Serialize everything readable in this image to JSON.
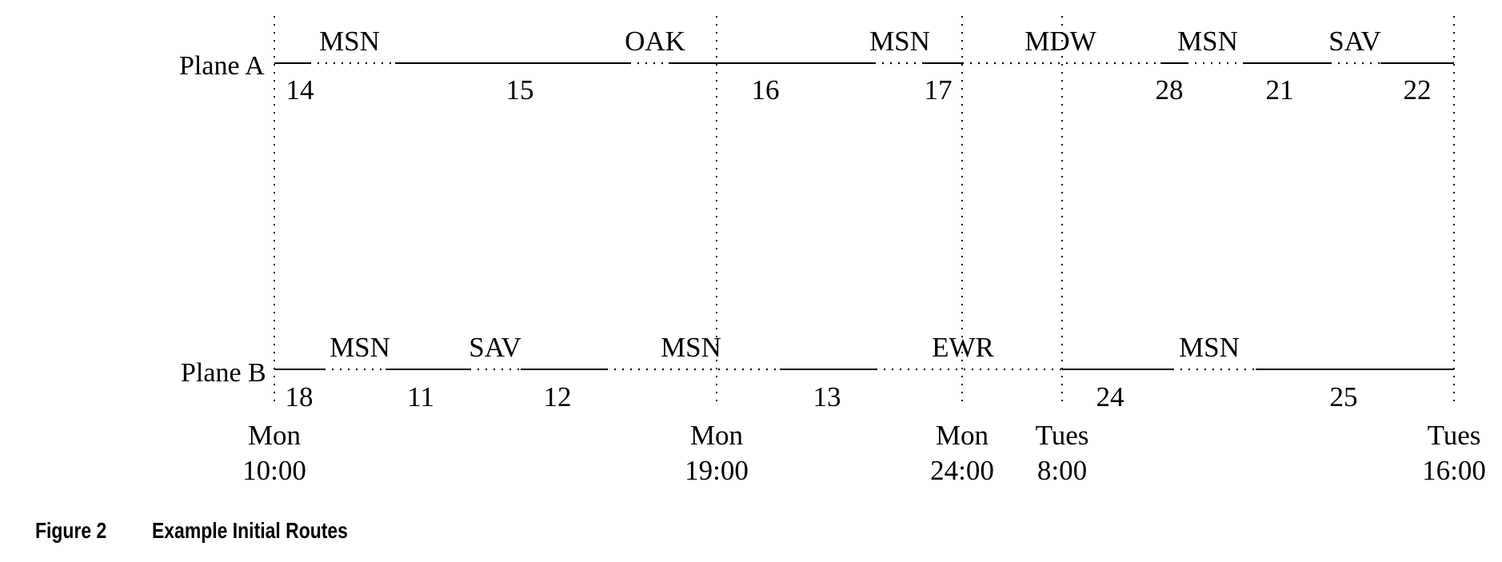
{
  "caption": {
    "label": "Figure 2",
    "title": "Example Initial Routes"
  },
  "time_marks": [
    {
      "day": "Mon",
      "time": "10:00"
    },
    {
      "day": "Mon",
      "time": "19:00"
    },
    {
      "day": "Mon",
      "time": "24:00"
    },
    {
      "day": "Tues",
      "time": "8:00"
    },
    {
      "day": "Tues",
      "time": "16:00"
    }
  ],
  "planes": [
    {
      "name": "Plane A",
      "airports": [
        "MSN",
        "OAK",
        "MSN",
        "MDW",
        "MSN",
        "SAV"
      ],
      "segments": [
        {
          "kind": "flight",
          "label": "14"
        },
        {
          "kind": "ground"
        },
        {
          "kind": "flight",
          "label": "15"
        },
        {
          "kind": "ground"
        },
        {
          "kind": "flight",
          "label": "16"
        },
        {
          "kind": "ground"
        },
        {
          "kind": "flight",
          "label": "17"
        },
        {
          "kind": "ground"
        },
        {
          "kind": "flight",
          "label": "28"
        },
        {
          "kind": "ground"
        },
        {
          "kind": "flight",
          "label": "21"
        },
        {
          "kind": "ground"
        },
        {
          "kind": "flight",
          "label": "22"
        }
      ]
    },
    {
      "name": "Plane B",
      "airports": [
        "MSN",
        "SAV",
        "MSN",
        "EWR",
        "MSN"
      ],
      "segments": [
        {
          "kind": "flight",
          "label": "18"
        },
        {
          "kind": "ground"
        },
        {
          "kind": "flight",
          "label": "11"
        },
        {
          "kind": "ground"
        },
        {
          "kind": "flight",
          "label": "12"
        },
        {
          "kind": "ground"
        },
        {
          "kind": "flight",
          "label": "13"
        },
        {
          "kind": "ground"
        },
        {
          "kind": "flight",
          "label": "24"
        },
        {
          "kind": "ground"
        },
        {
          "kind": "flight",
          "label": "25"
        }
      ]
    }
  ]
}
